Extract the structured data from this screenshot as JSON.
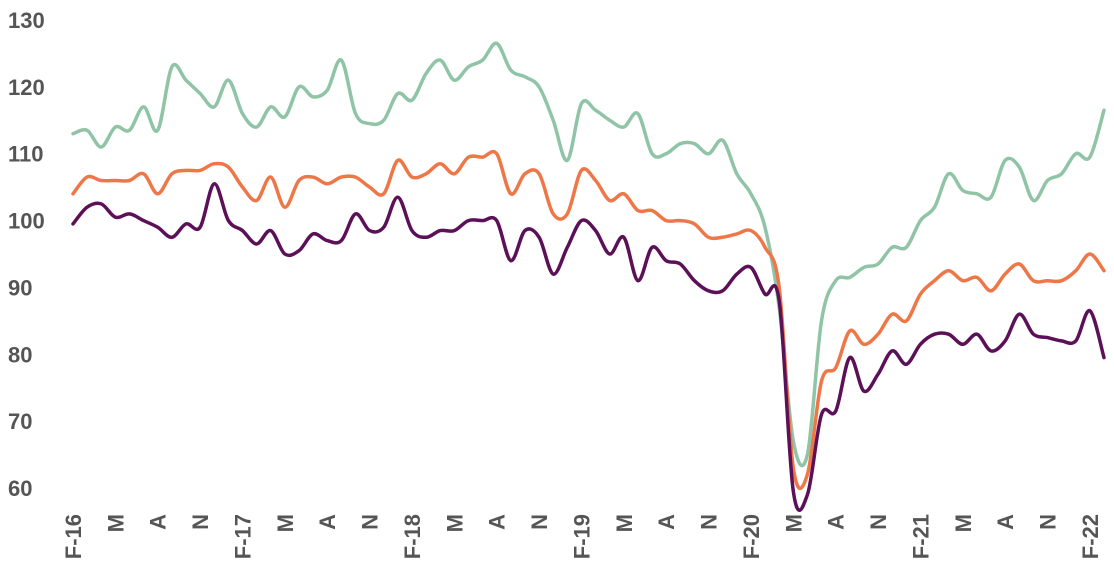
{
  "chart_data": {
    "type": "line",
    "title": "",
    "xlabel": "",
    "ylabel": "",
    "ylim": [
      57,
      131
    ],
    "y_ticks": [
      60,
      70,
      80,
      90,
      100,
      110,
      120,
      130
    ],
    "grid": false,
    "x_ticks": [
      {
        "index": 0,
        "label": "F-16"
      },
      {
        "index": 3,
        "label": "M"
      },
      {
        "index": 6,
        "label": "A"
      },
      {
        "index": 9,
        "label": "N"
      },
      {
        "index": 12,
        "label": "F-17"
      },
      {
        "index": 15,
        "label": "M"
      },
      {
        "index": 18,
        "label": "A"
      },
      {
        "index": 21,
        "label": "N"
      },
      {
        "index": 24,
        "label": "F-18"
      },
      {
        "index": 27,
        "label": "M"
      },
      {
        "index": 30,
        "label": "A"
      },
      {
        "index": 33,
        "label": "N"
      },
      {
        "index": 36,
        "label": "F-19"
      },
      {
        "index": 39,
        "label": "M"
      },
      {
        "index": 42,
        "label": "A"
      },
      {
        "index": 45,
        "label": "N"
      },
      {
        "index": 48,
        "label": "F-20"
      },
      {
        "index": 51,
        "label": "M"
      },
      {
        "index": 54,
        "label": "A"
      },
      {
        "index": 57,
        "label": "N"
      },
      {
        "index": 60,
        "label": "F-21"
      },
      {
        "index": 63,
        "label": "M"
      },
      {
        "index": 66,
        "label": "A"
      },
      {
        "index": 69,
        "label": "N"
      },
      {
        "index": 72,
        "label": "F-22"
      }
    ],
    "series": [
      {
        "color": "#8fc4a6",
        "values": [
          113,
          113.5,
          111,
          114,
          113.5,
          117,
          113.5,
          123,
          121,
          119,
          117,
          121,
          116,
          114,
          117,
          115.5,
          120,
          118.5,
          119.5,
          124,
          116,
          114.5,
          115,
          119,
          118,
          122,
          124,
          121,
          123,
          124,
          126.5,
          122.5,
          121.5,
          120,
          115,
          109,
          117.5,
          116.5,
          115,
          114,
          116,
          110,
          110,
          111.5,
          111.5,
          110,
          112,
          107,
          104,
          99,
          87,
          67,
          65,
          85,
          91,
          91.5,
          93,
          93.5,
          96,
          96,
          100,
          102,
          107,
          104.5,
          104,
          103.5,
          109,
          108,
          103,
          106,
          107,
          110,
          109.5,
          116.5
        ]
      },
      {
        "color": "#ee7748",
        "values": [
          104,
          106.5,
          106,
          106,
          106,
          107,
          104,
          107,
          107.5,
          107.5,
          108.5,
          108,
          105,
          103,
          106.5,
          102,
          106,
          106.5,
          105.5,
          106.5,
          106.5,
          105,
          104,
          109,
          106.5,
          107,
          108.5,
          107,
          109.5,
          109.5,
          110,
          104,
          107,
          107,
          101,
          101,
          107.5,
          106,
          103,
          104,
          101.5,
          101.5,
          100,
          100,
          99.5,
          97.5,
          97.5,
          98,
          98.5,
          96,
          90,
          63,
          62,
          76,
          78,
          83.5,
          81.5,
          83,
          86,
          85,
          89,
          91,
          92.5,
          91,
          91.5,
          89.5,
          92,
          93.5,
          91,
          91,
          91,
          92.5,
          95,
          92.5
        ]
      },
      {
        "color": "#5c1058",
        "values": [
          99.5,
          102,
          102.5,
          100.5,
          101,
          100,
          99,
          97.5,
          99.5,
          99,
          105.5,
          100,
          98.5,
          96.5,
          98.5,
          95,
          95.5,
          98,
          97,
          97,
          101,
          98.5,
          99,
          103.5,
          98.5,
          97.5,
          98.5,
          98.5,
          100,
          100,
          100,
          94,
          98.5,
          97.5,
          92,
          96,
          100,
          98.5,
          95,
          97.5,
          91,
          96,
          94,
          93.5,
          91,
          89.5,
          89.5,
          92,
          93,
          89,
          88,
          59.5,
          59,
          71,
          71.5,
          79.5,
          74.5,
          77,
          80.5,
          78.5,
          81.5,
          83,
          83,
          81.5,
          83,
          80.5,
          82,
          86,
          83,
          82.5,
          82,
          82,
          86.5,
          79.5
        ]
      }
    ]
  }
}
